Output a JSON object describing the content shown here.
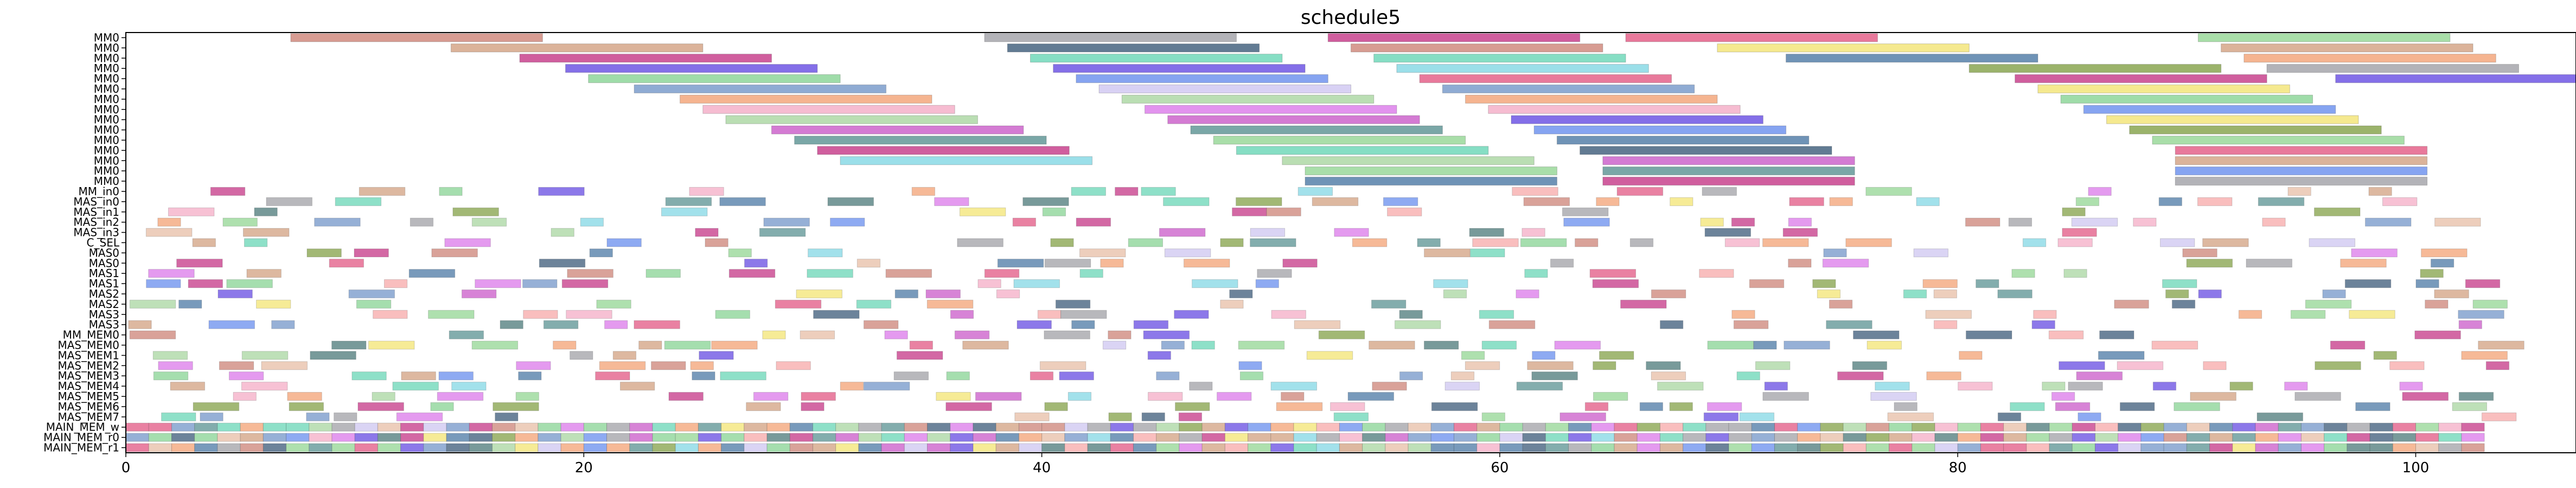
{
  "chart_data": {
    "type": "gantt",
    "title": "schedule5",
    "xlim": [
      0,
      107
    ],
    "xticks": [
      0,
      20,
      40,
      60,
      80,
      100
    ],
    "grid": false,
    "legend": "none",
    "rows": [
      "MM0",
      "MM0",
      "MM0",
      "MM0",
      "MM0",
      "MM0",
      "MM0",
      "MM0",
      "MM0",
      "MM0",
      "MM0",
      "MM0",
      "MM0",
      "MM0",
      "MM0",
      "MM_in0",
      "MAS_in0",
      "MAS_in1",
      "MAS_in2",
      "MAS_in3",
      "C_SEL",
      "MAS0",
      "MAS0",
      "MAS1",
      "MAS1",
      "MAS2",
      "MAS2",
      "MAS3",
      "MAS3",
      "MM_MEM0",
      "MAS_MEM0",
      "MAS_MEM1",
      "MAS_MEM2",
      "MAS_MEM3",
      "MAS_MEM4",
      "MAS_MEM5",
      "MAS_MEM6",
      "MAS_MEM7",
      "MAIN_MEM_w",
      "MAIN_MEM_r0",
      "MAIN_MEM_r1"
    ],
    "colors": [
      "#c97b6e",
      "#cf9a78",
      "#c0287d",
      "#5b3fe0",
      "#7fd08c",
      "#6a8fc4",
      "#f29b6b",
      "#f3a6c2",
      "#a3d39a",
      "#c64fc4",
      "#4e8a8a",
      "#7ad4e2",
      "#3f6f9e",
      "#7a9a3a",
      "#e04c7a",
      "#f2e26a",
      "#5ed3b0",
      "#5e86ec",
      "#d86fe8",
      "#9a9aa0",
      "#2e4f6f",
      "#e6b99f",
      "#8cd38c",
      "#cbc2f0",
      "#f7a3a3",
      "#3f6f6f"
    ],
    "bars": [
      {
        "row": 0,
        "start": 7.2,
        "end": 18.2,
        "c": 0
      },
      {
        "row": 0,
        "start": 37.5,
        "end": 48.5,
        "c": 19
      },
      {
        "row": 0,
        "start": 52.5,
        "end": 63.5,
        "c": 2
      },
      {
        "row": 0,
        "start": 65.5,
        "end": 76.5,
        "c": 14
      },
      {
        "row": 0,
        "start": 90.5,
        "end": 101.5,
        "c": 22
      },
      {
        "row": 1,
        "start": 14.2,
        "end": 25.2,
        "c": 1
      },
      {
        "row": 1,
        "start": 38.5,
        "end": 49.5,
        "c": 20
      },
      {
        "row": 1,
        "start": 53.5,
        "end": 64.5,
        "c": 0
      },
      {
        "row": 1,
        "start": 69.5,
        "end": 80.5,
        "c": 15
      },
      {
        "row": 1,
        "start": 91.5,
        "end": 102.5,
        "c": 1
      },
      {
        "row": 2,
        "start": 17.2,
        "end": 28.2,
        "c": 2
      },
      {
        "row": 2,
        "start": 39.5,
        "end": 50.5,
        "c": 16
      },
      {
        "row": 2,
        "start": 54.5,
        "end": 65.5,
        "c": 16
      },
      {
        "row": 2,
        "start": 72.5,
        "end": 83.5,
        "c": 12
      },
      {
        "row": 2,
        "start": 92.5,
        "end": 103.5,
        "c": 6
      },
      {
        "row": 3,
        "start": 19.2,
        "end": 30.2,
        "c": 3
      },
      {
        "row": 3,
        "start": 40.5,
        "end": 51.5,
        "c": 3
      },
      {
        "row": 3,
        "start": 55.5,
        "end": 66.5,
        "c": 11
      },
      {
        "row": 3,
        "start": 80.5,
        "end": 91.5,
        "c": 13
      },
      {
        "row": 3,
        "start": 93.5,
        "end": 104.5,
        "c": 19
      },
      {
        "row": 4,
        "start": 20.2,
        "end": 31.2,
        "c": 4
      },
      {
        "row": 4,
        "start": 41.5,
        "end": 52.5,
        "c": 17
      },
      {
        "row": 4,
        "start": 56.5,
        "end": 67.5,
        "c": 14
      },
      {
        "row": 4,
        "start": 82.5,
        "end": 93.5,
        "c": 2
      },
      {
        "row": 4,
        "start": 96.5,
        "end": 107,
        "c": 3
      },
      {
        "row": 5,
        "start": 22.2,
        "end": 33.2,
        "c": 5
      },
      {
        "row": 5,
        "start": 42.5,
        "end": 53.5,
        "c": 23
      },
      {
        "row": 5,
        "start": 57.5,
        "end": 68.5,
        "c": 5
      },
      {
        "row": 5,
        "start": 83.5,
        "end": 94.5,
        "c": 15
      },
      {
        "row": 6,
        "start": 24.2,
        "end": 35.2,
        "c": 6
      },
      {
        "row": 6,
        "start": 43.5,
        "end": 54.5,
        "c": 8
      },
      {
        "row": 6,
        "start": 58.5,
        "end": 69.5,
        "c": 6
      },
      {
        "row": 6,
        "start": 84.5,
        "end": 95.5,
        "c": 4
      },
      {
        "row": 7,
        "start": 25.2,
        "end": 36.2,
        "c": 7
      },
      {
        "row": 7,
        "start": 44.5,
        "end": 55.5,
        "c": 18
      },
      {
        "row": 7,
        "start": 59.5,
        "end": 70.5,
        "c": 7
      },
      {
        "row": 7,
        "start": 85.5,
        "end": 96.5,
        "c": 17
      },
      {
        "row": 8,
        "start": 26.2,
        "end": 37.2,
        "c": 8
      },
      {
        "row": 8,
        "start": 45.5,
        "end": 56.5,
        "c": 9
      },
      {
        "row": 8,
        "start": 60.5,
        "end": 71.5,
        "c": 3
      },
      {
        "row": 8,
        "start": 86.5,
        "end": 97.5,
        "c": 15
      },
      {
        "row": 9,
        "start": 28.2,
        "end": 39.2,
        "c": 9
      },
      {
        "row": 9,
        "start": 46.5,
        "end": 57.5,
        "c": 10
      },
      {
        "row": 9,
        "start": 61.5,
        "end": 72.5,
        "c": 17
      },
      {
        "row": 9,
        "start": 87.5,
        "end": 98.5,
        "c": 13
      },
      {
        "row": 10,
        "start": 29.2,
        "end": 40.2,
        "c": 10
      },
      {
        "row": 10,
        "start": 47.5,
        "end": 58.5,
        "c": 22
      },
      {
        "row": 10,
        "start": 62.5,
        "end": 73.5,
        "c": 12
      },
      {
        "row": 10,
        "start": 88.5,
        "end": 99.5,
        "c": 22
      },
      {
        "row": 11,
        "start": 30.2,
        "end": 41.2,
        "c": 2
      },
      {
        "row": 11,
        "start": 48.5,
        "end": 59.5,
        "c": 16
      },
      {
        "row": 11,
        "start": 63.5,
        "end": 74.5,
        "c": 20
      },
      {
        "row": 11,
        "start": 89.5,
        "end": 100.5,
        "c": 14
      },
      {
        "row": 12,
        "start": 31.2,
        "end": 42.2,
        "c": 11
      },
      {
        "row": 12,
        "start": 50.5,
        "end": 61.5,
        "c": 8
      },
      {
        "row": 12,
        "start": 64.5,
        "end": 75.5,
        "c": 9
      },
      {
        "row": 12,
        "start": 89.5,
        "end": 100.5,
        "c": 1
      },
      {
        "row": 13,
        "start": 51.5,
        "end": 62.5,
        "c": 22
      },
      {
        "row": 13,
        "start": 64.5,
        "end": 75.5,
        "c": 10
      },
      {
        "row": 13,
        "start": 89.5,
        "end": 100.5,
        "c": 17
      },
      {
        "row": 14,
        "start": 51.5,
        "end": 62.5,
        "c": 12
      },
      {
        "row": 14,
        "start": 64.5,
        "end": 75.5,
        "c": 2
      },
      {
        "row": 14,
        "start": 89.5,
        "end": 100.5,
        "c": 19
      }
    ]
  }
}
